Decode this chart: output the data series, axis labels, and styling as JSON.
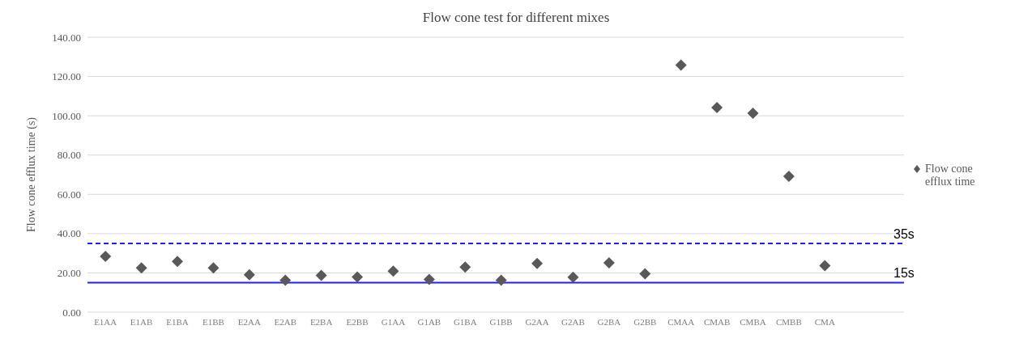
{
  "chart_data": {
    "type": "scatter",
    "title": "Flow cone test for different mixes",
    "ylabel": "Flow cone efflux time (s)",
    "categories": [
      "E1AA",
      "E1AB",
      "E1BA",
      "E1BB",
      "E2AA",
      "E2AB",
      "E2BA",
      "E2BB",
      "G1AA",
      "G1AB",
      "G1BA",
      "G1BB",
      "G2AA",
      "G2AB",
      "G2BA",
      "G2BB",
      "CMAA",
      "CMAB",
      "CMBA",
      "CMBB",
      "CMA"
    ],
    "series": [
      {
        "name": "Flow cone efflux time",
        "color": "#595959",
        "values": [
          28.4,
          22.5,
          25.8,
          22.5,
          19.0,
          16.3,
          18.7,
          17.9,
          20.9,
          16.7,
          23.0,
          16.3,
          24.8,
          17.8,
          25.1,
          19.6,
          125.8,
          104.2,
          101.3,
          69.2,
          23.7
        ]
      }
    ],
    "ylim": [
      0,
      140
    ],
    "yticks": [
      {
        "value": 0,
        "label": "0.00"
      },
      {
        "value": 20,
        "label": "20.00"
      },
      {
        "value": 40,
        "label": "40.00"
      },
      {
        "value": 60,
        "label": "60.00"
      },
      {
        "value": 80,
        "label": "80.00"
      },
      {
        "value": 100,
        "label": "100.00"
      },
      {
        "value": 120,
        "label": "120.00"
      },
      {
        "value": 140,
        "label": "140.00"
      }
    ],
    "ref_lines": [
      {
        "axis": "y",
        "value": 35,
        "label": "35s",
        "color": "#1f1fff",
        "line_style": "dashed"
      },
      {
        "axis": "y",
        "value": 15,
        "label": "15s",
        "color": "#1f1fff",
        "line_style": "solid"
      }
    ],
    "grid": "y",
    "legend": "right",
    "marker": "diamond"
  }
}
